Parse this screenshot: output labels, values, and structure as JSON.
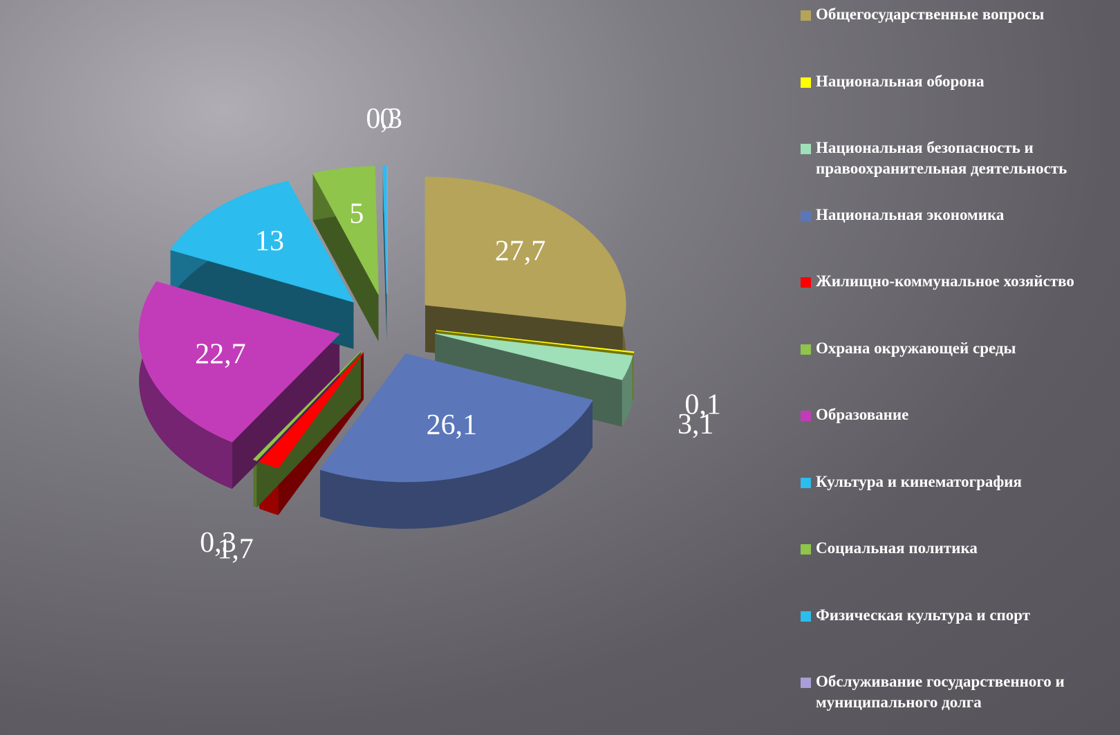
{
  "chart_data": {
    "type": "pie",
    "categories": [
      "Общегосударственные вопросы",
      "Национальная оборона",
      "Национальная безопасность и правоохранительная деятельность",
      "Национальная экономика",
      "Жилищно-коммунальное хозяйство",
      "Охрана окружающей среды",
      "Образование",
      "Культура и кинематография",
      "Социальная политика",
      "Физическая культура и спорт",
      "Обслуживание государственного и муниципального долга"
    ],
    "values": [
      27.7,
      0.1,
      3.1,
      26.1,
      1.7,
      0.3,
      22.7,
      13,
      5,
      0.3,
      0
    ],
    "value_labels": [
      "27,7",
      "0,1",
      "3,1",
      "26,1",
      "1,7",
      "0,3",
      "22,7",
      "13",
      "5",
      "0,3",
      "0"
    ],
    "colors": [
      "#b5a45a",
      "#ffff00",
      "#9fe0b8",
      "#5b77ba",
      "#ff0000",
      "#8fc54a",
      "#c23cba",
      "#2cbcee",
      "#8fc54a",
      "#2cbcee",
      "#a99fd8"
    ],
    "legend": "right"
  }
}
